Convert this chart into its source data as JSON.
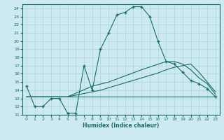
{
  "xlabel": "Humidex (Indice chaleur)",
  "xlim": [
    -0.5,
    23.5
  ],
  "ylim": [
    11,
    24.5
  ],
  "xticks": [
    0,
    1,
    2,
    3,
    4,
    5,
    6,
    7,
    8,
    9,
    10,
    11,
    12,
    13,
    14,
    15,
    16,
    17,
    18,
    19,
    20,
    21,
    22,
    23
  ],
  "yticks": [
    11,
    12,
    13,
    14,
    15,
    16,
    17,
    18,
    19,
    20,
    21,
    22,
    23,
    24
  ],
  "bg_color": "#cceaf0",
  "grid_color": "#aad4dc",
  "line_color": "#1a6b6b",
  "line1_x": [
    0,
    1,
    2,
    3,
    4,
    5,
    6,
    7,
    8,
    9,
    10,
    11,
    12,
    13,
    14,
    15,
    16,
    17,
    18,
    19,
    20,
    21,
    22,
    23
  ],
  "line1_y": [
    14.5,
    12.0,
    12.0,
    13.0,
    13.0,
    11.2,
    11.2,
    17.0,
    14.0,
    19.0,
    21.0,
    23.2,
    23.5,
    24.2,
    24.2,
    23.0,
    20.0,
    17.5,
    17.2,
    16.2,
    15.2,
    14.8,
    14.2,
    13.2
  ],
  "line2_x": [
    0,
    5,
    23
  ],
  "line2_y": [
    13.2,
    13.2,
    13.2
  ],
  "line3_x": [
    0,
    5,
    8,
    9,
    10,
    11,
    12,
    13,
    14,
    15,
    16,
    17,
    18,
    19,
    20,
    21,
    22,
    23
  ],
  "line3_y": [
    13.2,
    13.2,
    13.8,
    14.0,
    14.3,
    14.6,
    14.9,
    15.2,
    15.5,
    15.8,
    16.1,
    16.5,
    16.8,
    17.0,
    17.2,
    16.2,
    15.0,
    13.8
  ],
  "line4_x": [
    0,
    5,
    8,
    10,
    14,
    17,
    18,
    19,
    20,
    21,
    22,
    23
  ],
  "line4_y": [
    13.2,
    13.2,
    14.5,
    15.0,
    16.5,
    17.5,
    17.5,
    17.2,
    16.5,
    15.5,
    14.8,
    13.5
  ]
}
